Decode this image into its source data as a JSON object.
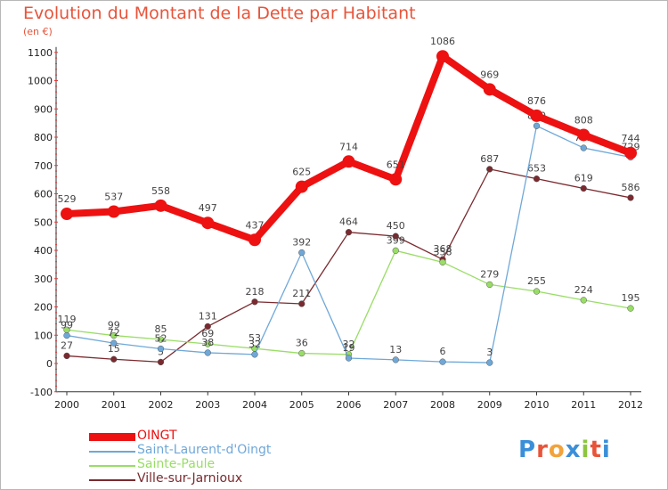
{
  "title": "Evolution du Montant de la Dette par Habitant",
  "unit_label": "(en €)",
  "logo_text": "Proxiti",
  "chart_data": {
    "type": "line",
    "title": "Evolution du Montant de la Dette par Habitant",
    "ylabel": "(en €)",
    "x": [
      "2000",
      "2001",
      "2002",
      "2003",
      "2004",
      "2005",
      "2006",
      "2007",
      "2008",
      "2009",
      "2010",
      "2011",
      "2012"
    ],
    "ylim": [
      -100,
      1100
    ],
    "yticks": [
      -100,
      0,
      100,
      200,
      300,
      400,
      500,
      600,
      700,
      800,
      900,
      1000,
      1100
    ],
    "grid": false,
    "legend_position": "bottom-left",
    "series": [
      {
        "name": "Ville-sur-Jarnioux",
        "color": "#7a2a2f",
        "values": [
          27,
          15,
          5,
          131,
          218,
          211,
          464,
          450,
          368,
          687,
          653,
          619,
          586
        ],
        "labels": [
          "27",
          "15",
          "5",
          "131",
          "218",
          "211",
          "464",
          "450",
          "368",
          "687",
          "653",
          "619",
          "586"
        ]
      },
      {
        "name": "Sainte-Paule",
        "color": "#99dd66",
        "values": [
          119,
          99,
          85,
          69,
          53,
          36,
          32,
          399,
          358,
          279,
          255,
          224,
          195
        ],
        "labels": [
          "119",
          "99",
          "85",
          "69",
          "53",
          "36",
          "32",
          "399",
          "358",
          "279",
          "255",
          "224",
          "195"
        ]
      },
      {
        "name": "Saint-Laurent-d'Oingt",
        "color": "#6fa8d8",
        "values": [
          99,
          72,
          52,
          38,
          32,
          392,
          19,
          13,
          6,
          3,
          840,
          762,
          729
        ],
        "labels": [
          "99",
          "72",
          "52",
          "38",
          "32",
          "392",
          "19",
          "13",
          "6",
          "3",
          "840",
          "762",
          "729"
        ]
      },
      {
        "name": "OINGT",
        "color": "#ee1111",
        "values": [
          529,
          537,
          558,
          497,
          437,
          625,
          714,
          651,
          1086,
          969,
          876,
          808,
          744
        ],
        "labels": [
          "529",
          "537",
          "558",
          "497",
          "437",
          "625",
          "714",
          "651",
          "1086",
          "969",
          "876",
          "808",
          "744"
        ]
      }
    ],
    "legend": [
      {
        "name": "OINGT",
        "color": "#ee1111"
      },
      {
        "name": "Saint-Laurent-d'Oingt",
        "color": "#6fa8d8"
      },
      {
        "name": "Sainte-Paule",
        "color": "#99dd66"
      },
      {
        "name": "Ville-sur-Jarnioux",
        "color": "#7a2a2f"
      }
    ]
  }
}
